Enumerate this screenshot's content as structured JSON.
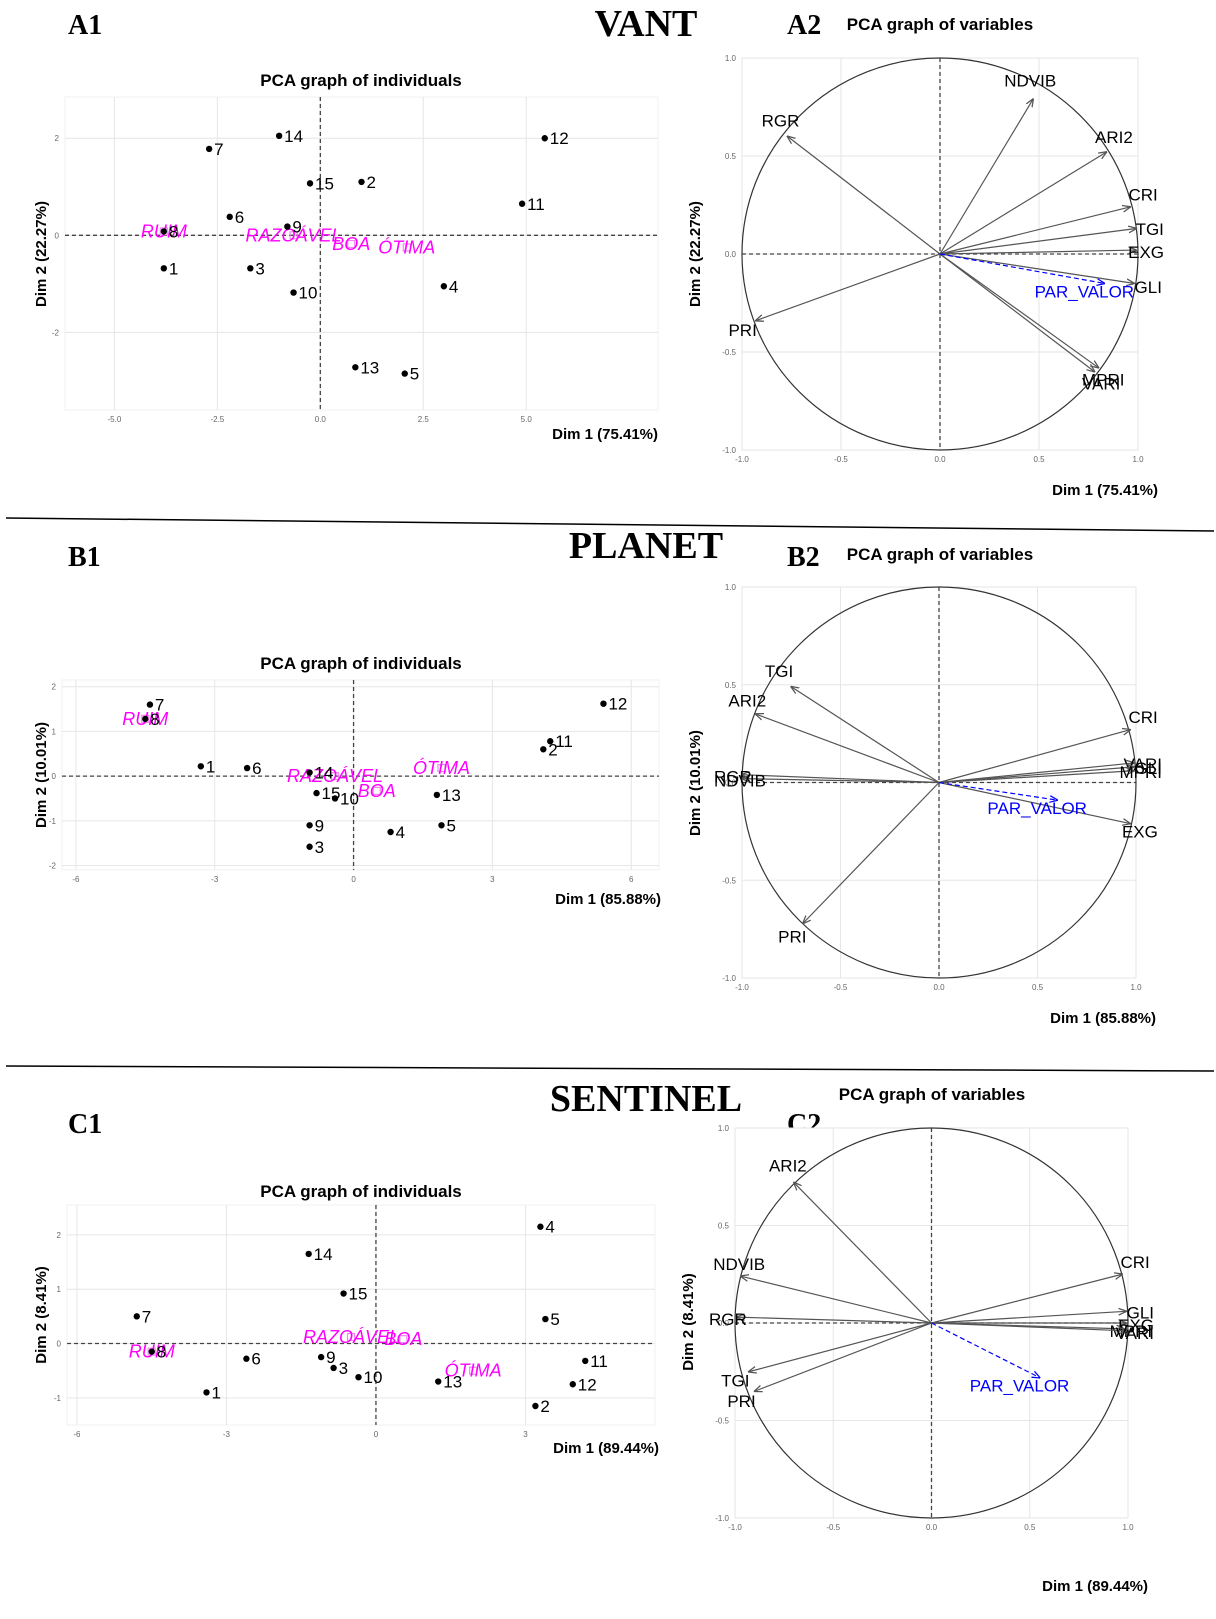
{
  "sections": [
    {
      "title": "VANT"
    },
    {
      "title": "PLANET"
    },
    {
      "title": "SENTINEL"
    }
  ],
  "colors": {
    "individual_point": "#000000",
    "category": "#ff00ff",
    "variable_arrow": "#555555",
    "supplementary": "#0000ff",
    "grid": "#e6e6e6",
    "circle": "#333333"
  },
  "chart_data": [
    {
      "panel": "A1",
      "type": "scatter",
      "title": "PCA graph of individuals",
      "xlabel": "Dim 1 (75.41%)",
      "ylabel": "Dim 2 (22.27%)",
      "xlim": [
        -6.2,
        8.2
      ],
      "ylim": [
        -3.6,
        2.85
      ],
      "xticks": [
        -5.0,
        -2.5,
        0.0,
        2.5,
        5.0
      ],
      "xtick_labels": [
        "-5.0",
        "-2.5",
        "0.0",
        "2.5",
        "5.0"
      ],
      "yticks": [
        -2,
        0,
        2
      ],
      "ytick_labels": [
        "-2",
        "0",
        "2"
      ],
      "grid": true,
      "points": [
        {
          "label": "1",
          "x": -3.8,
          "y": -0.68
        },
        {
          "label": "2",
          "x": 1.0,
          "y": 1.1
        },
        {
          "label": "3",
          "x": -1.7,
          "y": -0.68
        },
        {
          "label": "4",
          "x": 3.0,
          "y": -1.05
        },
        {
          "label": "5",
          "x": 2.05,
          "y": -2.85
        },
        {
          "label": "6",
          "x": -2.2,
          "y": 0.38
        },
        {
          "label": "7",
          "x": -2.7,
          "y": 1.78
        },
        {
          "label": "8",
          "x": -3.8,
          "y": 0.08
        },
        {
          "label": "9",
          "x": -0.8,
          "y": 0.18
        },
        {
          "label": "10",
          "x": -0.65,
          "y": -1.18
        },
        {
          "label": "11",
          "x": 4.9,
          "y": 0.65
        },
        {
          "label": "12",
          "x": 5.45,
          "y": 2.0
        },
        {
          "label": "13",
          "x": 0.85,
          "y": -2.72
        },
        {
          "label": "14",
          "x": -1.0,
          "y": 2.05
        },
        {
          "label": "15",
          "x": -0.25,
          "y": 1.07
        }
      ],
      "categories": [
        {
          "label": "RUIM",
          "x": -3.8,
          "y": 0.08
        },
        {
          "label": "RAZOÁVEL",
          "x": -0.65,
          "y": 0.0
        },
        {
          "label": "BOA",
          "x": 0.75,
          "y": -0.18
        },
        {
          "label": "ÓTIMA",
          "x": 2.1,
          "y": -0.25
        }
      ]
    },
    {
      "panel": "A2",
      "type": "line",
      "title": "PCA graph of variables",
      "xlabel": "Dim 1 (75.41%)",
      "ylabel": "Dim 2 (22.27%)",
      "xlim": [
        -1.0,
        1.0
      ],
      "ylim": [
        -1.0,
        1.0
      ],
      "ticks": [
        -1.0,
        -0.5,
        0.0,
        0.5,
        1.0
      ],
      "tick_labels": [
        "-1.0",
        "-0.5",
        "0.0",
        "0.5",
        "1.0"
      ],
      "grid": true,
      "variables": [
        {
          "label": "NDVIB",
          "x": 0.47,
          "y": 0.79,
          "supplementary": false
        },
        {
          "label": "RGR",
          "x": -0.77,
          "y": 0.6,
          "supplementary": false
        },
        {
          "label": "ARI2",
          "x": 0.84,
          "y": 0.52,
          "supplementary": false
        },
        {
          "label": "CRI",
          "x": 0.96,
          "y": 0.24,
          "supplementary": false
        },
        {
          "label": "TGI",
          "x": 0.99,
          "y": 0.13,
          "supplementary": false
        },
        {
          "label": "EXG",
          "x": 0.99,
          "y": 0.02,
          "supplementary": false
        },
        {
          "label": "GLI",
          "x": 0.98,
          "y": -0.15,
          "supplementary": false
        },
        {
          "label": "PRI",
          "x": -0.93,
          "y": -0.34,
          "supplementary": false
        },
        {
          "label": "MPRI",
          "x": 0.8,
          "y": -0.58,
          "supplementary": false
        },
        {
          "label": "VARI",
          "x": 0.78,
          "y": -0.6,
          "supplementary": false
        },
        {
          "label": "PAR_VALOR",
          "x": 0.83,
          "y": -0.15,
          "supplementary": true
        }
      ]
    },
    {
      "panel": "B1",
      "type": "scatter",
      "title": "PCA graph of individuals",
      "xlabel": "Dim 1 (85.88%)",
      "ylabel": "Dim 2 (10.01%)",
      "xlim": [
        -6.3,
        6.6
      ],
      "ylim": [
        -2.1,
        2.15
      ],
      "xticks": [
        -6,
        -3,
        0,
        3,
        6
      ],
      "xtick_labels": [
        "-6",
        "-3",
        "0",
        "3",
        "6"
      ],
      "yticks": [
        -2,
        -1,
        0,
        1,
        2
      ],
      "ytick_labels": [
        "-2",
        "-1",
        "0",
        "1",
        "2"
      ],
      "grid": true,
      "points": [
        {
          "label": "1",
          "x": -3.3,
          "y": 0.22
        },
        {
          "label": "2",
          "x": 4.1,
          "y": 0.6
        },
        {
          "label": "3",
          "x": -0.95,
          "y": -1.58
        },
        {
          "label": "4",
          "x": 0.8,
          "y": -1.25
        },
        {
          "label": "5",
          "x": 1.9,
          "y": -1.1
        },
        {
          "label": "6",
          "x": -2.3,
          "y": 0.18
        },
        {
          "label": "7",
          "x": -4.4,
          "y": 1.6
        },
        {
          "label": "8",
          "x": -4.5,
          "y": 1.28
        },
        {
          "label": "9",
          "x": -0.95,
          "y": -1.1
        },
        {
          "label": "10",
          "x": -0.4,
          "y": -0.5
        },
        {
          "label": "11",
          "x": 4.25,
          "y": 0.78
        },
        {
          "label": "12",
          "x": 5.4,
          "y": 1.62
        },
        {
          "label": "13",
          "x": 1.8,
          "y": -0.42
        },
        {
          "label": "14",
          "x": -0.95,
          "y": 0.08
        },
        {
          "label": "15",
          "x": -0.8,
          "y": -0.38
        }
      ],
      "categories": [
        {
          "label": "RUIM",
          "x": -4.5,
          "y": 1.28
        },
        {
          "label": "RAZOÁVEL",
          "x": -0.4,
          "y": 0.0
        },
        {
          "label": "BOA",
          "x": 0.5,
          "y": -0.33
        },
        {
          "label": "ÓTIMA",
          "x": 1.9,
          "y": 0.18
        }
      ]
    },
    {
      "panel": "B2",
      "type": "line",
      "title": "PCA graph of variables",
      "xlabel": "Dim 1 (85.88%)",
      "ylabel": "Dim 2 (10.01%)",
      "xlim": [
        -1.0,
        1.0
      ],
      "ylim": [
        -1.0,
        1.0
      ],
      "ticks": [
        -1.0,
        -0.5,
        0.0,
        0.5,
        1.0
      ],
      "tick_labels": [
        "-1.0",
        "-0.5",
        "0.0",
        "0.5",
        "1.0"
      ],
      "grid": true,
      "variables": [
        {
          "label": "TGI",
          "x": -0.75,
          "y": 0.49,
          "supplementary": false
        },
        {
          "label": "ARI2",
          "x": -0.93,
          "y": 0.35,
          "supplementary": false
        },
        {
          "label": "RGR",
          "x": -1.0,
          "y": 0.04,
          "supplementary": false
        },
        {
          "label": "NDVIB",
          "x": -1.0,
          "y": 0.02,
          "supplementary": false
        },
        {
          "label": "CRI",
          "x": 0.97,
          "y": 0.27,
          "supplementary": false
        },
        {
          "label": "VARI",
          "x": 0.99,
          "y": 0.1,
          "supplementary": false
        },
        {
          "label": "GLI",
          "x": 0.99,
          "y": 0.08,
          "supplementary": false
        },
        {
          "label": "MPRI",
          "x": 0.99,
          "y": 0.06,
          "supplementary": false
        },
        {
          "label": "EXG",
          "x": 0.97,
          "y": -0.21,
          "supplementary": false
        },
        {
          "label": "PRI",
          "x": -0.69,
          "y": -0.72,
          "supplementary": false
        },
        {
          "label": "PAR_VALOR",
          "x": 0.6,
          "y": -0.09,
          "supplementary": true
        }
      ]
    },
    {
      "panel": "C1",
      "type": "scatter",
      "title": "PCA graph of individuals",
      "xlabel": "Dim 1 (89.44%)",
      "ylabel": "Dim 2 (8.41%)",
      "xlim": [
        -6.2,
        5.6
      ],
      "ylim": [
        -1.5,
        2.55
      ],
      "xticks": [
        -6,
        -3,
        0,
        3
      ],
      "xtick_labels": [
        "-6",
        "-3",
        "0",
        "3"
      ],
      "yticks": [
        -1,
        0,
        1,
        2
      ],
      "ytick_labels": [
        "-1",
        "0",
        "1",
        "2"
      ],
      "grid": true,
      "points": [
        {
          "label": "1",
          "x": -3.4,
          "y": -0.9
        },
        {
          "label": "2",
          "x": 3.2,
          "y": -1.15
        },
        {
          "label": "3",
          "x": -0.85,
          "y": -0.45
        },
        {
          "label": "4",
          "x": 3.3,
          "y": 2.15
        },
        {
          "label": "5",
          "x": 3.4,
          "y": 0.45
        },
        {
          "label": "6",
          "x": -2.6,
          "y": -0.28
        },
        {
          "label": "7",
          "x": -4.8,
          "y": 0.5
        },
        {
          "label": "8",
          "x": -4.5,
          "y": -0.15
        },
        {
          "label": "9",
          "x": -1.1,
          "y": -0.25
        },
        {
          "label": "10",
          "x": -0.35,
          "y": -0.62
        },
        {
          "label": "11",
          "x": 4.2,
          "y": -0.32
        },
        {
          "label": "12",
          "x": 3.95,
          "y": -0.75
        },
        {
          "label": "13",
          "x": 1.25,
          "y": -0.7
        },
        {
          "label": "14",
          "x": -1.35,
          "y": 1.65
        },
        {
          "label": "15",
          "x": -0.65,
          "y": 0.92
        }
      ],
      "categories": [
        {
          "label": "RUIM",
          "x": -4.5,
          "y": -0.15
        },
        {
          "label": "RAZOÁVEL",
          "x": -0.5,
          "y": 0.12
        },
        {
          "label": "BOA",
          "x": 0.55,
          "y": 0.08
        },
        {
          "label": "ÓTIMA",
          "x": 1.95,
          "y": -0.5
        }
      ]
    },
    {
      "panel": "C2",
      "type": "line",
      "title": "PCA graph of variables",
      "xlabel": "Dim 1 (89.44%)",
      "ylabel": "Dim 2 (8.41%)",
      "xlim": [
        -1.0,
        1.0
      ],
      "ylim": [
        -1.0,
        1.0
      ],
      "ticks": [
        -1.0,
        -0.5,
        0.0,
        0.5,
        1.0
      ],
      "tick_labels": [
        "-1.0",
        "-0.5",
        "0.0",
        "0.5",
        "1.0"
      ],
      "grid": true,
      "variables": [
        {
          "label": "ARI2",
          "x": -0.7,
          "y": 0.72,
          "supplementary": false
        },
        {
          "label": "NDVIB",
          "x": -0.97,
          "y": 0.24,
          "supplementary": false
        },
        {
          "label": "RGR",
          "x": -0.99,
          "y": 0.03,
          "supplementary": false
        },
        {
          "label": "CRI",
          "x": 0.97,
          "y": 0.25,
          "supplementary": false
        },
        {
          "label": "GLI",
          "x": 0.99,
          "y": 0.06,
          "supplementary": false
        },
        {
          "label": "EXG",
          "x": 0.99,
          "y": 0.0,
          "supplementary": false
        },
        {
          "label": "MPRI",
          "x": 0.98,
          "y": -0.03,
          "supplementary": false
        },
        {
          "label": "VARI",
          "x": 0.99,
          "y": -0.04,
          "supplementary": false
        },
        {
          "label": "TGI",
          "x": -0.93,
          "y": -0.25,
          "supplementary": false
        },
        {
          "label": "PRI",
          "x": -0.9,
          "y": -0.35,
          "supplementary": false
        },
        {
          "label": "PAR_VALOR",
          "x": 0.55,
          "y": -0.28,
          "supplementary": true
        }
      ]
    }
  ]
}
